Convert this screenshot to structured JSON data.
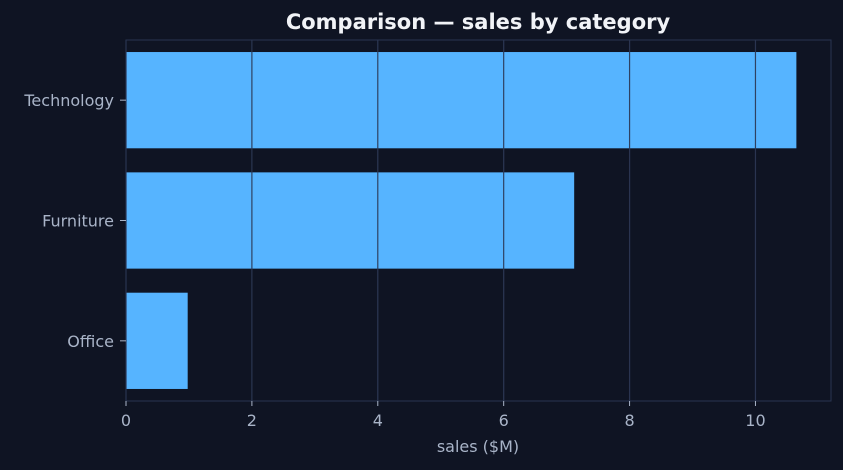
{
  "chart_data": {
    "type": "bar",
    "orientation": "horizontal",
    "title": "Comparison — sales by category",
    "xlabel": "sales ($M)",
    "ylabel": "",
    "categories": [
      "Technology",
      "Furniture",
      "Office"
    ],
    "values": [
      10.65,
      7.12,
      0.98
    ],
    "xlim": [
      0,
      11.2
    ],
    "xticks": [
      0,
      2,
      4,
      6,
      8,
      10
    ],
    "grid": true,
    "legend": "none",
    "colors": {
      "background": "#0f1423",
      "bar": "#56b4ff",
      "grid": "#2a3550",
      "text": "#a9b4c8",
      "title": "#f1f3f7"
    }
  }
}
